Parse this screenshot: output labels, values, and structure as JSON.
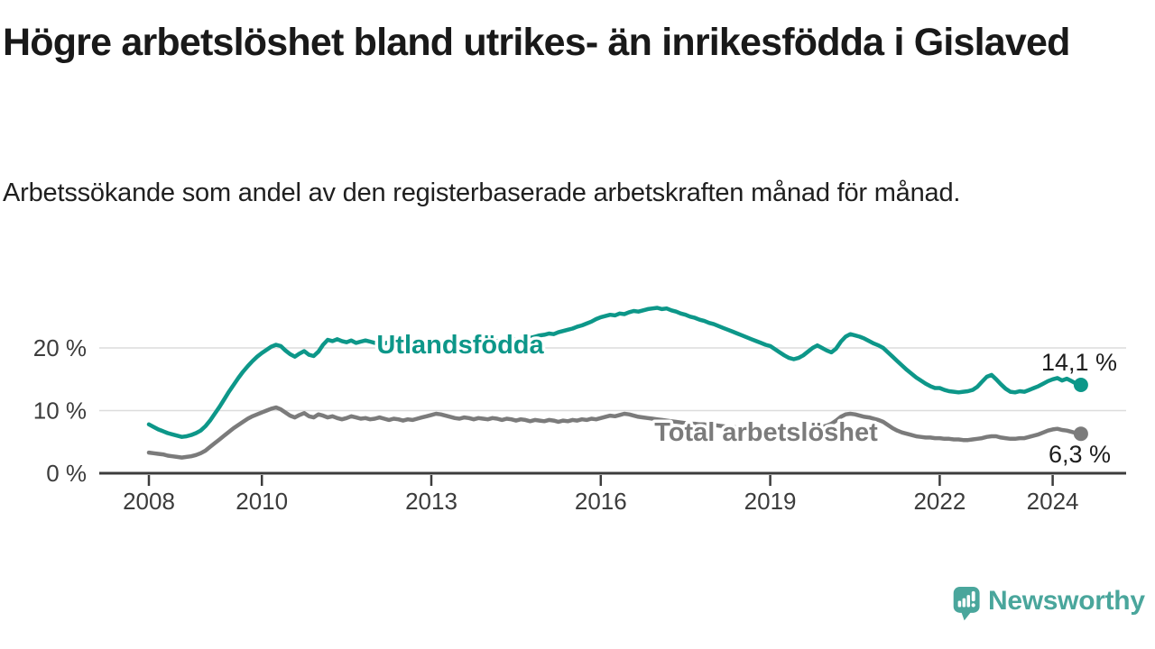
{
  "title": "Högre arbetslöshet bland utrikes- än inrikesfödda i Gislaved",
  "subtitle": "Arbetssökande som andel av den registerbaserade arbetskraften månad för månad.",
  "branding": {
    "logo_text": "Newsworthy",
    "logo_icon": "newsworthy-speech-bubble-bar-chart-icon"
  },
  "colors": {
    "utlandsfodda": "#0d9789",
    "total": "#7b7b7b",
    "logo": "#4aa69c",
    "axis": "#3c3c3c",
    "grid": "#dcdcdc",
    "background": "#ffffff"
  },
  "chart_data": {
    "type": "line",
    "frequency": "monthly",
    "x_start": "2008-01",
    "x_end": "2024-07",
    "x_tick_years": [
      2008,
      2010,
      2013,
      2016,
      2019,
      2022,
      2024
    ],
    "y_ticks": [
      {
        "value": 0,
        "label": "0 %"
      },
      {
        "value": 10,
        "label": "10 %"
      },
      {
        "value": 20,
        "label": "20 %"
      }
    ],
    "ylim": [
      0,
      28
    ],
    "grid": "horizontal-only",
    "legend": "inline-labels",
    "series": [
      {
        "name": "Utlandsfödda",
        "color": "#0d9789",
        "end_label": "14,1 %",
        "end_value": 14.1,
        "values": [
          7.8,
          7.4,
          7.0,
          6.7,
          6.4,
          6.2,
          6.0,
          5.8,
          5.9,
          6.1,
          6.4,
          6.8,
          7.5,
          8.4,
          9.5,
          10.6,
          11.8,
          13.0,
          14.1,
          15.2,
          16.2,
          17.1,
          17.9,
          18.6,
          19.2,
          19.7,
          20.2,
          20.5,
          20.3,
          19.6,
          19.0,
          18.6,
          19.1,
          19.5,
          18.9,
          18.7,
          19.4,
          20.5,
          21.3,
          21.1,
          21.4,
          21.1,
          20.9,
          21.2,
          20.8,
          21.0,
          21.2,
          21.0,
          20.8,
          21.0,
          20.7,
          20.9,
          20.6,
          20.8,
          20.5,
          20.7,
          20.4,
          20.6,
          20.8,
          20.6,
          20.5,
          20.7,
          20.6,
          20.8,
          20.7,
          20.9,
          20.8,
          21.0,
          20.9,
          21.1,
          21.0,
          21.2,
          21.0,
          21.2,
          21.1,
          21.3,
          21.2,
          21.4,
          21.3,
          21.5,
          21.4,
          21.6,
          21.8,
          22.0,
          22.1,
          22.3,
          22.2,
          22.5,
          22.7,
          22.9,
          23.1,
          23.4,
          23.6,
          23.9,
          24.2,
          24.6,
          24.9,
          25.1,
          25.3,
          25.2,
          25.5,
          25.4,
          25.7,
          25.9,
          25.8,
          26.0,
          26.2,
          26.3,
          26.4,
          26.2,
          26.3,
          26.0,
          25.8,
          25.5,
          25.3,
          25.0,
          24.8,
          24.5,
          24.3,
          24.0,
          23.8,
          23.5,
          23.2,
          22.9,
          22.6,
          22.3,
          22.0,
          21.7,
          21.4,
          21.1,
          20.8,
          20.5,
          20.3,
          19.8,
          19.3,
          18.8,
          18.4,
          18.2,
          18.4,
          18.8,
          19.4,
          20.0,
          20.4,
          20.0,
          19.6,
          19.3,
          19.9,
          21.0,
          21.8,
          22.2,
          22.0,
          21.8,
          21.5,
          21.1,
          20.7,
          20.4,
          20.0,
          19.3,
          18.6,
          17.9,
          17.2,
          16.5,
          15.9,
          15.3,
          14.8,
          14.3,
          13.9,
          13.6,
          13.6,
          13.3,
          13.1,
          13.0,
          12.9,
          13.0,
          13.1,
          13.3,
          13.8,
          14.6,
          15.4,
          15.7,
          15.0,
          14.2,
          13.5,
          13.0,
          12.9,
          13.1,
          13.0,
          13.3,
          13.6,
          13.9,
          14.3,
          14.7,
          15.0,
          15.2,
          14.8,
          15.1,
          14.7,
          14.3,
          14.1
        ]
      },
      {
        "name": "Total arbetslöshet",
        "color": "#7b7b7b",
        "end_label": "6,3 %",
        "end_value": 6.3,
        "values": [
          3.3,
          3.2,
          3.1,
          3.0,
          2.8,
          2.7,
          2.6,
          2.5,
          2.6,
          2.7,
          2.9,
          3.2,
          3.6,
          4.2,
          4.8,
          5.4,
          6.0,
          6.6,
          7.2,
          7.7,
          8.2,
          8.7,
          9.1,
          9.4,
          9.7,
          10.0,
          10.3,
          10.5,
          10.2,
          9.7,
          9.2,
          8.9,
          9.3,
          9.6,
          9.1,
          8.9,
          9.4,
          9.2,
          8.9,
          9.1,
          8.8,
          8.6,
          8.8,
          9.1,
          8.9,
          8.7,
          8.8,
          8.6,
          8.7,
          8.9,
          8.7,
          8.5,
          8.7,
          8.6,
          8.4,
          8.6,
          8.5,
          8.7,
          8.9,
          9.1,
          9.3,
          9.5,
          9.4,
          9.2,
          9.0,
          8.8,
          8.7,
          8.9,
          8.8,
          8.6,
          8.8,
          8.7,
          8.6,
          8.8,
          8.7,
          8.5,
          8.7,
          8.6,
          8.4,
          8.6,
          8.5,
          8.3,
          8.5,
          8.4,
          8.3,
          8.5,
          8.4,
          8.2,
          8.4,
          8.3,
          8.5,
          8.4,
          8.6,
          8.5,
          8.7,
          8.6,
          8.8,
          9.0,
          9.2,
          9.1,
          9.3,
          9.5,
          9.4,
          9.2,
          9.0,
          8.9,
          8.8,
          8.7,
          8.6,
          8.5,
          8.4,
          8.3,
          8.2,
          8.1,
          8.0,
          7.9,
          7.9,
          7.8,
          7.8,
          7.7,
          7.7,
          7.6,
          7.5,
          7.4,
          7.4,
          7.3,
          7.3,
          7.2,
          7.2,
          7.1,
          7.1,
          7.0,
          7.0,
          6.9,
          6.9,
          6.8,
          6.8,
          6.9,
          6.9,
          7.0,
          7.1,
          7.2,
          7.3,
          7.4,
          7.6,
          7.9,
          8.4,
          9.0,
          9.4,
          9.5,
          9.4,
          9.2,
          9.0,
          8.9,
          8.7,
          8.5,
          8.2,
          7.7,
          7.2,
          6.8,
          6.5,
          6.3,
          6.1,
          5.9,
          5.8,
          5.7,
          5.7,
          5.6,
          5.6,
          5.5,
          5.5,
          5.4,
          5.4,
          5.3,
          5.3,
          5.4,
          5.5,
          5.6,
          5.8,
          5.9,
          5.9,
          5.7,
          5.6,
          5.5,
          5.5,
          5.6,
          5.6,
          5.8,
          6.0,
          6.2,
          6.5,
          6.8,
          7.0,
          7.1,
          6.9,
          6.8,
          6.6,
          6.4,
          6.3
        ]
      }
    ]
  }
}
